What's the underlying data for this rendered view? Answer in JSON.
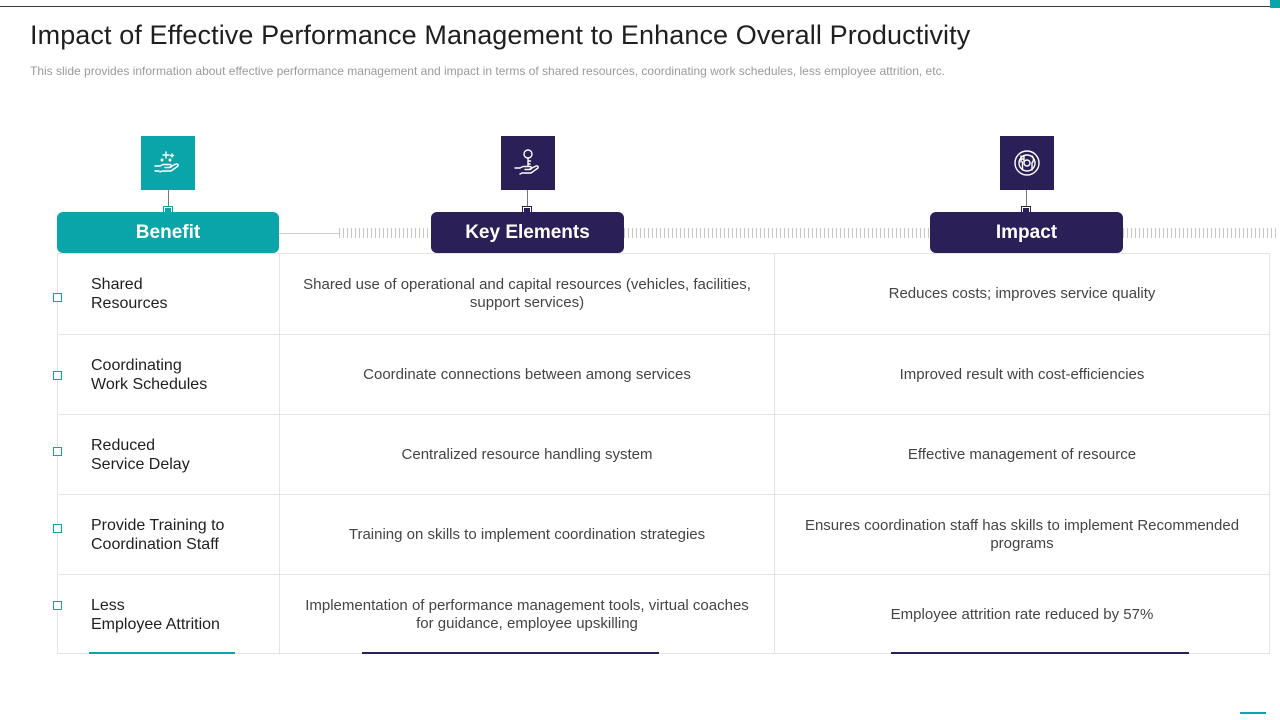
{
  "header": {
    "title": "Impact of Effective Performance Management to Enhance  Overall Productivity",
    "subtitle": "This slide provides  information  about  effective  performance  management  and impact in terms of shared resources, coordinating work schedules, less employee attrition, etc."
  },
  "columns": [
    {
      "label": "Benefit",
      "icon": "hand-plus-icon",
      "color": "#0aa5a8"
    },
    {
      "label": "Key Elements",
      "icon": "key-hand-icon",
      "color": "#2a1f57"
    },
    {
      "label": "Impact",
      "icon": "target-icon",
      "color": "#2a1f57"
    }
  ],
  "rows": [
    {
      "benefit": "Shared\nResources",
      "key_element": "Shared use of operational and capital resources (vehicles, facilities, support services)",
      "impact": "Reduces costs; improves service quality"
    },
    {
      "benefit": "Coordinating\nWork Schedules",
      "key_element": "Coordinate connections between among services",
      "impact": "Improved result with cost-efficiencies"
    },
    {
      "benefit": "Reduced\nService Delay",
      "key_element": "Centralized resource handling  system",
      "impact": "Effective management of resource"
    },
    {
      "benefit": "Provide Training  to\nCoordination Staff",
      "key_element": "Training on skills to implement coordination strategies",
      "impact": "Ensures coordination staff has skills to implement Recommended programs"
    },
    {
      "benefit": "Less\nEmployee Attrition",
      "key_element": "Implementation of performance management tools, virtual coaches for guidance, employee upskilling",
      "impact": "Employee attrition rate reduced by 57%"
    }
  ],
  "colors": {
    "teal": "#0aa5a8",
    "navy": "#2a1f57"
  }
}
